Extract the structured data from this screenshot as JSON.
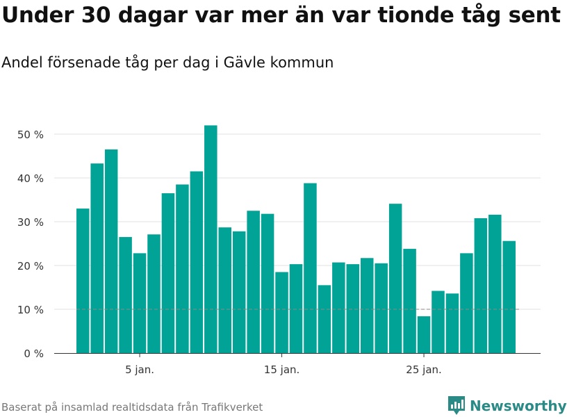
{
  "header": {
    "title": "Under 30 dagar var mer än var tionde tåg sent",
    "subtitle": "Andel försenade tåg per dag i Gävle kommun"
  },
  "footer": {
    "source": "Baserat på insamlad realtidsdata från Trafikverket",
    "brand": "Newsworthy"
  },
  "colors": {
    "bar": "#00a396",
    "grid": "#e0e0e0",
    "reference_line": "#888888",
    "brand": "#2a8a86"
  },
  "chart_data": {
    "type": "bar",
    "title": "Under 30 dagar var mer än var tionde tåg sent",
    "subtitle": "Andel försenade tåg per dag i Gävle kommun",
    "xlabel": "",
    "ylabel": "",
    "x": [
      1,
      2,
      3,
      4,
      5,
      6,
      7,
      8,
      9,
      10,
      11,
      12,
      13,
      14,
      15,
      16,
      17,
      18,
      19,
      20,
      21,
      22,
      23,
      24,
      25,
      26,
      27,
      28,
      29,
      30,
      31
    ],
    "values": [
      33,
      43.3,
      46.5,
      26.5,
      22.8,
      27.1,
      36.5,
      38.5,
      41.5,
      52,
      28.7,
      27.8,
      32.5,
      31.8,
      18.5,
      20.3,
      38.8,
      15.5,
      20.7,
      20.3,
      21.7,
      20.5,
      34.1,
      23.8,
      8.4,
      14.2,
      13.6,
      22.8,
      30.8,
      31.6,
      25.6
    ],
    "ylim": [
      0,
      55
    ],
    "y_ticks": [
      0,
      10,
      20,
      30,
      40,
      50
    ],
    "y_tick_labels": [
      "0 %",
      "10 %",
      "20 %",
      "30 %",
      "40 %",
      "50 %"
    ],
    "x_ticks": [
      5,
      15,
      25
    ],
    "x_tick_labels": [
      "5 jan.",
      "15 jan.",
      "25 jan."
    ],
    "reference_line": 10,
    "grid": true
  }
}
